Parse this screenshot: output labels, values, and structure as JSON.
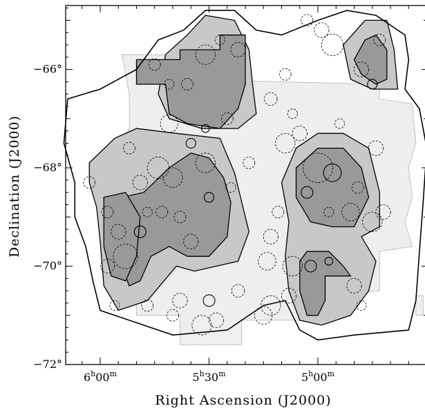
{
  "chart_data": {
    "type": "scatter",
    "title": "",
    "xlabel": "Right Ascension (J2000)",
    "ylabel": "Declination (J2000)",
    "x_unit": "minutes of RA",
    "xlim": [
      370,
      270
    ],
    "ylim": [
      -72,
      -64.7
    ],
    "x_ticks": [
      {
        "value": 360,
        "h": "6",
        "hs": "h",
        "m": "00",
        "ms": "m"
      },
      {
        "value": 330,
        "h": "5",
        "hs": "h",
        "m": "30",
        "ms": "m"
      },
      {
        "value": 300,
        "h": "5",
        "hs": "h",
        "m": "00",
        "ms": "m"
      }
    ],
    "y_ticks": [
      {
        "value": -66,
        "label": "−66°"
      },
      {
        "value": -68,
        "label": "−68°"
      },
      {
        "value": -70,
        "label": "−70°"
      },
      {
        "value": -72,
        "label": "−72°"
      }
    ],
    "colors": {
      "survey_light": "#eeeeee",
      "contour_mid": "#c8c8c8",
      "contour_dark": "#999999",
      "outline": "#000000"
    },
    "regions": [
      {
        "name": "survey-area",
        "level": "light",
        "points": [
          [
            354,
            -65.7
          ],
          [
            338,
            -65.7
          ],
          [
            338,
            -66.2
          ],
          [
            283,
            -66.3
          ],
          [
            283,
            -66.6
          ],
          [
            274,
            -66.7
          ],
          [
            273,
            -67.5
          ],
          [
            275,
            -68.0
          ],
          [
            274,
            -68.6
          ],
          [
            276,
            -69.1
          ],
          [
            274,
            -69.6
          ],
          [
            283,
            -69.7
          ],
          [
            283,
            -70.5
          ],
          [
            298,
            -70.6
          ],
          [
            298,
            -71.1
          ],
          [
            321,
            -71.1
          ],
          [
            321,
            -71.6
          ],
          [
            338,
            -71.6
          ],
          [
            338,
            -71.0
          ],
          [
            350,
            -71.0
          ],
          [
            350,
            -70.0
          ],
          [
            354,
            -69.5
          ],
          [
            354,
            -68.8
          ],
          [
            358,
            -68.6
          ],
          [
            362,
            -68.5
          ],
          [
            362,
            -68.0
          ],
          [
            356,
            -67.8
          ],
          [
            352,
            -67.2
          ],
          [
            352,
            -66.5
          ]
        ]
      },
      {
        "name": "survey-patch-east",
        "level": "light",
        "points": [
          [
            273,
            -70.6
          ],
          [
            271,
            -70.6
          ],
          [
            271,
            -71.0
          ],
          [
            273,
            -71.0
          ]
        ]
      },
      {
        "name": "contour-west",
        "level": "mid",
        "points": [
          [
            363,
            -67.9
          ],
          [
            356,
            -67.4
          ],
          [
            350,
            -67.2
          ],
          [
            339,
            -67.3
          ],
          [
            327,
            -67.4
          ],
          [
            323,
            -68.1
          ],
          [
            321,
            -68.7
          ],
          [
            319,
            -69.3
          ],
          [
            322,
            -69.9
          ],
          [
            334,
            -70.1
          ],
          [
            339,
            -70.0
          ],
          [
            347,
            -70.7
          ],
          [
            355,
            -70.9
          ],
          [
            359,
            -70.4
          ],
          [
            360,
            -69.5
          ],
          [
            361,
            -68.8
          ],
          [
            363,
            -68.3
          ]
        ]
      },
      {
        "name": "contour-north",
        "level": "mid",
        "points": [
          [
            342,
            -65.7
          ],
          [
            336,
            -65.3
          ],
          [
            331,
            -64.9
          ],
          [
            323,
            -65.0
          ],
          [
            319,
            -65.6
          ],
          [
            318,
            -66.3
          ],
          [
            317,
            -66.9
          ],
          [
            322,
            -67.2
          ],
          [
            332,
            -67.2
          ],
          [
            341,
            -67.0
          ],
          [
            344,
            -66.5
          ]
        ]
      },
      {
        "name": "contour-ne",
        "level": "mid",
        "points": [
          [
            287,
            -65.0
          ],
          [
            281,
            -65.0
          ],
          [
            279,
            -65.6
          ],
          [
            278,
            -66.4
          ],
          [
            285,
            -66.4
          ],
          [
            291,
            -66.2
          ],
          [
            293,
            -65.5
          ]
        ]
      },
      {
        "name": "contour-east",
        "level": "mid",
        "points": [
          [
            300,
            -67.3
          ],
          [
            293,
            -67.3
          ],
          [
            286,
            -67.6
          ],
          [
            283,
            -68.5
          ],
          [
            283,
            -69.2
          ],
          [
            288,
            -69.4
          ],
          [
            284,
            -69.9
          ],
          [
            286,
            -70.5
          ],
          [
            291,
            -71.0
          ],
          [
            299,
            -71.2
          ],
          [
            305,
            -71.1
          ],
          [
            308,
            -70.5
          ],
          [
            309,
            -69.8
          ],
          [
            308,
            -69.1
          ],
          [
            310,
            -68.3
          ],
          [
            306,
            -67.6
          ]
        ]
      },
      {
        "name": "dark-north",
        "level": "dark",
        "points": [
          [
            350,
            -65.8
          ],
          [
            338,
            -65.8
          ],
          [
            338,
            -65.6
          ],
          [
            327,
            -65.6
          ],
          [
            327,
            -65.3
          ],
          [
            320,
            -65.3
          ],
          [
            320,
            -66.3
          ],
          [
            322,
            -66.8
          ],
          [
            327,
            -67.2
          ],
          [
            336,
            -67.1
          ],
          [
            341,
            -66.9
          ],
          [
            342,
            -66.3
          ],
          [
            350,
            -66.3
          ]
        ]
      },
      {
        "name": "dark-west-a",
        "level": "dark",
        "points": [
          [
            354,
            -68.6
          ],
          [
            348,
            -68.5
          ],
          [
            341,
            -68.0
          ],
          [
            335,
            -67.7
          ],
          [
            330,
            -67.8
          ],
          [
            326,
            -68.2
          ],
          [
            324,
            -68.7
          ],
          [
            325,
            -69.4
          ],
          [
            330,
            -69.8
          ],
          [
            336,
            -69.8
          ],
          [
            341,
            -69.6
          ],
          [
            346,
            -69.8
          ],
          [
            349,
            -70.3
          ],
          [
            352,
            -70.4
          ],
          [
            354,
            -70.0
          ]
        ]
      },
      {
        "name": "dark-west-b",
        "level": "dark",
        "points": [
          [
            359,
            -68.6
          ],
          [
            353,
            -68.5
          ],
          [
            349,
            -69.0
          ],
          [
            350,
            -69.8
          ],
          [
            353,
            -70.3
          ],
          [
            357,
            -70.2
          ],
          [
            359,
            -69.6
          ]
        ]
      },
      {
        "name": "dark-east-north",
        "level": "dark",
        "points": [
          [
            300,
            -67.6
          ],
          [
            293,
            -67.6
          ],
          [
            288,
            -68.0
          ],
          [
            286,
            -68.6
          ],
          [
            290,
            -69.2
          ],
          [
            296,
            -69.2
          ],
          [
            302,
            -69.1
          ],
          [
            306,
            -68.6
          ],
          [
            306,
            -68.0
          ]
        ]
      },
      {
        "name": "dark-east-south",
        "level": "dark",
        "points": [
          [
            303,
            -69.7
          ],
          [
            297,
            -69.7
          ],
          [
            293,
            -70.0
          ],
          [
            291,
            -70.2
          ],
          [
            298,
            -70.2
          ],
          [
            298,
            -70.7
          ],
          [
            300,
            -71.0
          ],
          [
            303,
            -71.0
          ],
          [
            305,
            -70.5
          ],
          [
            305,
            -69.9
          ]
        ]
      },
      {
        "name": "dark-ne",
        "level": "dark",
        "points": [
          [
            287,
            -65.4
          ],
          [
            284,
            -65.3
          ],
          [
            281,
            -65.6
          ],
          [
            281,
            -66.2
          ],
          [
            284,
            -66.3
          ],
          [
            288,
            -66.1
          ],
          [
            290,
            -65.8
          ]
        ]
      }
    ],
    "outer_contour": [
      [
        344,
        -65.4
      ],
      [
        337,
        -65.2
      ],
      [
        331,
        -64.8
      ],
      [
        323,
        -64.8
      ],
      [
        317,
        -65.2
      ],
      [
        310,
        -65.3
      ],
      [
        300,
        -65.0
      ],
      [
        292,
        -64.8
      ],
      [
        284,
        -64.9
      ],
      [
        276,
        -65.3
      ],
      [
        275,
        -65.8
      ],
      [
        276,
        -66.4
      ],
      [
        272,
        -66.8
      ],
      [
        270,
        -67.6
      ],
      [
        271,
        -68.7
      ],
      [
        272,
        -69.7
      ],
      [
        273,
        -70.7
      ],
      [
        275,
        -71.3
      ],
      [
        290,
        -71.4
      ],
      [
        300,
        -71.5
      ],
      [
        305,
        -71.3
      ],
      [
        309,
        -70.7
      ],
      [
        315,
        -70.8
      ],
      [
        325,
        -71.3
      ],
      [
        340,
        -71.4
      ],
      [
        352,
        -71.1
      ],
      [
        360,
        -70.9
      ],
      [
        362,
        -70.3
      ],
      [
        364,
        -69.6
      ],
      [
        367,
        -69.0
      ],
      [
        367,
        -68.3
      ],
      [
        370,
        -67.5
      ],
      [
        369,
        -66.6
      ],
      [
        360,
        -66.4
      ],
      [
        350,
        -66.0
      ]
    ],
    "circles": [
      {
        "ra": 331,
        "dec": -65.7,
        "r": 0.2,
        "style": "dashed"
      },
      {
        "ra": 327,
        "dec": -65.4,
        "r": 0.1,
        "style": "dashed"
      },
      {
        "ra": 345,
        "dec": -65.9,
        "r": 0.12,
        "style": "dashed"
      },
      {
        "ra": 341,
        "dec": -66.3,
        "r": 0.1,
        "style": "dashed"
      },
      {
        "ra": 336,
        "dec": -66.3,
        "r": 0.12,
        "style": "dashed"
      },
      {
        "ra": 322,
        "dec": -65.6,
        "r": 0.15,
        "style": "dashed"
      },
      {
        "ra": 341,
        "dec": -67.1,
        "r": 0.18,
        "style": "dashed"
      },
      {
        "ra": 335,
        "dec": -67.5,
        "r": 0.1,
        "style": "solid"
      },
      {
        "ra": 331,
        "dec": -67.2,
        "r": 0.08,
        "style": "solid"
      },
      {
        "ra": 325,
        "dec": -67.0,
        "r": 0.12,
        "style": "dashed"
      },
      {
        "ra": 303,
        "dec": -65.0,
        "r": 0.12,
        "style": "dashed"
      },
      {
        "ra": 299,
        "dec": -65.2,
        "r": 0.15,
        "style": "dashed"
      },
      {
        "ra": 296,
        "dec": -65.5,
        "r": 0.22,
        "style": "dashed"
      },
      {
        "ra": 288,
        "dec": -66.0,
        "r": 0.15,
        "style": "dashed"
      },
      {
        "ra": 285,
        "dec": -66.3,
        "r": 0.1,
        "style": "solid"
      },
      {
        "ra": 283,
        "dec": -65.4,
        "r": 0.12,
        "style": "dashed"
      },
      {
        "ra": 309,
        "dec": -66.1,
        "r": 0.12,
        "style": "dashed"
      },
      {
        "ra": 313,
        "dec": -66.6,
        "r": 0.13,
        "style": "dashed"
      },
      {
        "ra": 307,
        "dec": -66.9,
        "r": 0.1,
        "style": "dashed"
      },
      {
        "ra": 305,
        "dec": -67.3,
        "r": 0.15,
        "style": "dashed"
      },
      {
        "ra": 309,
        "dec": -67.5,
        "r": 0.2,
        "style": "dashed"
      },
      {
        "ra": 294,
        "dec": -67.1,
        "r": 0.1,
        "style": "dashed"
      },
      {
        "ra": 284,
        "dec": -67.6,
        "r": 0.15,
        "style": "dashed"
      },
      {
        "ra": 300,
        "dec": -68.0,
        "r": 0.3,
        "style": "dashed"
      },
      {
        "ra": 296,
        "dec": -68.1,
        "r": 0.18,
        "style": "solid"
      },
      {
        "ra": 303,
        "dec": -68.5,
        "r": 0.12,
        "style": "solid"
      },
      {
        "ra": 289,
        "dec": -68.4,
        "r": 0.12,
        "style": "dashed"
      },
      {
        "ra": 291,
        "dec": -68.9,
        "r": 0.18,
        "style": "dashed"
      },
      {
        "ra": 297,
        "dec": -68.9,
        "r": 0.1,
        "style": "dashed"
      },
      {
        "ra": 285,
        "dec": -69.1,
        "r": 0.2,
        "style": "dashed"
      },
      {
        "ra": 282,
        "dec": -68.9,
        "r": 0.15,
        "style": "dashed"
      },
      {
        "ra": 311,
        "dec": -68.9,
        "r": 0.12,
        "style": "dashed"
      },
      {
        "ra": 313,
        "dec": -69.4,
        "r": 0.15,
        "style": "dashed"
      },
      {
        "ra": 314,
        "dec": -69.9,
        "r": 0.18,
        "style": "dashed"
      },
      {
        "ra": 307,
        "dec": -70.0,
        "r": 0.2,
        "style": "dashed"
      },
      {
        "ra": 302,
        "dec": -70.0,
        "r": 0.12,
        "style": "solid"
      },
      {
        "ra": 297,
        "dec": -69.9,
        "r": 0.08,
        "style": "solid"
      },
      {
        "ra": 308,
        "dec": -70.6,
        "r": 0.15,
        "style": "dashed"
      },
      {
        "ra": 313,
        "dec": -70.8,
        "r": 0.2,
        "style": "dashed"
      },
      {
        "ra": 290,
        "dec": -70.4,
        "r": 0.15,
        "style": "dashed"
      },
      {
        "ra": 288,
        "dec": -70.8,
        "r": 0.1,
        "style": "dashed"
      },
      {
        "ra": 315,
        "dec": -71.0,
        "r": 0.18,
        "style": "dashed"
      },
      {
        "ra": 322,
        "dec": -70.5,
        "r": 0.13,
        "style": "dashed"
      },
      {
        "ra": 330,
        "dec": -70.7,
        "r": 0.12,
        "style": "solid"
      },
      {
        "ra": 328,
        "dec": -71.1,
        "r": 0.15,
        "style": "dashed"
      },
      {
        "ra": 332,
        "dec": -71.2,
        "r": 0.2,
        "style": "dashed"
      },
      {
        "ra": 340,
        "dec": -71.0,
        "r": 0.12,
        "style": "dashed"
      },
      {
        "ra": 338,
        "dec": -70.7,
        "r": 0.15,
        "style": "dashed"
      },
      {
        "ra": 347,
        "dec": -70.8,
        "r": 0.12,
        "style": "dashed"
      },
      {
        "ra": 356,
        "dec": -70.8,
        "r": 0.1,
        "style": "dashed"
      },
      {
        "ra": 358,
        "dec": -70.0,
        "r": 0.14,
        "style": "dashed"
      },
      {
        "ra": 353,
        "dec": -69.8,
        "r": 0.25,
        "style": "dashed"
      },
      {
        "ra": 355,
        "dec": -69.3,
        "r": 0.15,
        "style": "dashed"
      },
      {
        "ra": 349,
        "dec": -69.3,
        "r": 0.12,
        "style": "solid"
      },
      {
        "ra": 347,
        "dec": -68.9,
        "r": 0.1,
        "style": "dashed"
      },
      {
        "ra": 343,
        "dec": -68.9,
        "r": 0.12,
        "style": "dashed"
      },
      {
        "ra": 340,
        "dec": -68.2,
        "r": 0.2,
        "style": "dashed"
      },
      {
        "ra": 344,
        "dec": -68.0,
        "r": 0.22,
        "style": "dashed"
      },
      {
        "ra": 349,
        "dec": -68.3,
        "r": 0.15,
        "style": "dashed"
      },
      {
        "ra": 352,
        "dec": -67.6,
        "r": 0.12,
        "style": "dashed"
      },
      {
        "ra": 331,
        "dec": -67.9,
        "r": 0.2,
        "style": "dashed"
      },
      {
        "ra": 330,
        "dec": -68.6,
        "r": 0.1,
        "style": "solid"
      },
      {
        "ra": 335,
        "dec": -69.5,
        "r": 0.15,
        "style": "dashed"
      },
      {
        "ra": 338,
        "dec": -69.0,
        "r": 0.12,
        "style": "dashed"
      },
      {
        "ra": 319,
        "dec": -67.9,
        "r": 0.12,
        "style": "dashed"
      },
      {
        "ra": 324,
        "dec": -68.4,
        "r": 0.1,
        "style": "dashed"
      },
      {
        "ra": 363,
        "dec": -68.3,
        "r": 0.12,
        "style": "dashed"
      },
      {
        "ra": 358,
        "dec": -68.9,
        "r": 0.12,
        "style": "dashed"
      }
    ]
  }
}
